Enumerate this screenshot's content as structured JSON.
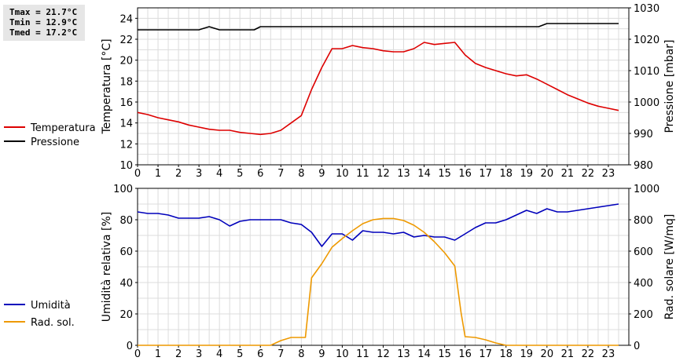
{
  "stats": {
    "tmax": "Tmax = 21.7°C",
    "tmin": "Tmin = 12.9°C",
    "tmed": "Tmed = 17.2°C"
  },
  "chart_data": [
    {
      "type": "line",
      "xlabel": "",
      "ylabel": "Temperatura [°C]",
      "y2label": "Pressione [mbar]",
      "xlim": [
        0,
        24
      ],
      "ylim": [
        10,
        25
      ],
      "y2lim": [
        980,
        1030
      ],
      "x_ticks": [
        0,
        1,
        2,
        3,
        4,
        5,
        6,
        7,
        8,
        9,
        10,
        11,
        12,
        13,
        14,
        15,
        16,
        17,
        18,
        19,
        20,
        21,
        22,
        23
      ],
      "y_ticks": [
        10,
        12,
        14,
        16,
        18,
        20,
        22,
        24
      ],
      "y2_ticks": [
        980,
        990,
        1000,
        1010,
        1020,
        1030
      ],
      "grid": true,
      "legend": "left",
      "series": [
        {
          "name": "Temperatura",
          "axis": "left",
          "color": "#dd0000",
          "x": [
            0,
            0.5,
            1,
            1.5,
            2,
            2.5,
            3,
            3.5,
            4,
            4.5,
            5,
            5.5,
            6,
            6.5,
            7,
            7.5,
            8,
            8.5,
            9,
            9.5,
            10,
            10.5,
            11,
            11.5,
            12,
            12.5,
            13,
            13.5,
            14,
            14.5,
            15,
            15.5,
            16,
            16.5,
            17,
            17.5,
            18,
            18.5,
            19,
            19.5,
            20,
            20.5,
            21,
            21.5,
            22,
            22.5,
            23,
            23.5
          ],
          "values": [
            15.0,
            14.8,
            14.5,
            14.3,
            14.1,
            13.8,
            13.6,
            13.4,
            13.3,
            13.3,
            13.1,
            13.0,
            12.9,
            13.0,
            13.3,
            14.0,
            14.7,
            17.2,
            19.3,
            21.1,
            21.1,
            21.4,
            21.2,
            21.1,
            20.9,
            20.8,
            20.8,
            21.1,
            21.7,
            21.5,
            21.6,
            21.7,
            20.5,
            19.7,
            19.3,
            19.0,
            18.7,
            18.5,
            18.6,
            18.2,
            17.7,
            17.2,
            16.7,
            16.3,
            15.9,
            15.6,
            15.4,
            15.2
          ]
        },
        {
          "name": "Pressione",
          "axis": "right",
          "color": "#000000",
          "x": [
            0,
            1,
            2,
            3,
            3.5,
            4,
            5,
            5.7,
            6,
            7,
            8,
            9,
            10,
            11,
            12,
            13,
            14,
            15,
            16,
            17,
            18,
            19,
            19.6,
            20,
            21,
            22,
            23,
            23.5
          ],
          "values": [
            1023,
            1023,
            1023,
            1023,
            1024,
            1023,
            1023,
            1023,
            1024,
            1024,
            1024,
            1024,
            1024,
            1024,
            1024,
            1024,
            1024,
            1024,
            1024,
            1024,
            1024,
            1024,
            1024,
            1025,
            1025,
            1025,
            1025,
            1025
          ]
        }
      ]
    },
    {
      "type": "line",
      "xlabel": "",
      "ylabel": "Umidità relativa [%]",
      "y2label": "Rad. solare [W/mq]",
      "xlim": [
        0,
        24
      ],
      "ylim": [
        0,
        100
      ],
      "y2lim": [
        0,
        1000
      ],
      "x_ticks": [
        0,
        1,
        2,
        3,
        4,
        5,
        6,
        7,
        8,
        9,
        10,
        11,
        12,
        13,
        14,
        15,
        16,
        17,
        18,
        19,
        20,
        21,
        22,
        23
      ],
      "y_ticks": [
        0,
        20,
        40,
        60,
        80,
        100
      ],
      "y2_ticks": [
        0,
        200,
        400,
        600,
        800,
        1000
      ],
      "grid": true,
      "legend": "left",
      "series": [
        {
          "name": "Umidità",
          "axis": "left",
          "color": "#0000bb",
          "x": [
            0,
            0.5,
            1,
            1.5,
            2,
            2.5,
            3,
            3.5,
            4,
            4.5,
            5,
            5.5,
            6,
            6.5,
            7,
            7.5,
            8,
            8.5,
            9,
            9.5,
            10,
            10.5,
            11,
            11.5,
            12,
            12.5,
            13,
            13.5,
            14,
            14.5,
            15,
            15.5,
            16,
            16.5,
            17,
            17.5,
            18,
            18.5,
            19,
            19.5,
            20,
            20.5,
            21,
            21.5,
            22,
            22.5,
            23,
            23.5
          ],
          "values": [
            85,
            84,
            84,
            83,
            81,
            81,
            81,
            82,
            80,
            76,
            79,
            80,
            80,
            80,
            80,
            78,
            77,
            72,
            63,
            71,
            71,
            67,
            73,
            72,
            72,
            71,
            72,
            69,
            70,
            69,
            69,
            67,
            71,
            75,
            78,
            78,
            80,
            83,
            86,
            84,
            87,
            85,
            85,
            86,
            87,
            88,
            89,
            90
          ]
        },
        {
          "name": "Rad. sol.",
          "axis": "right",
          "color": "#ee9900",
          "x": [
            0,
            1,
            2,
            3,
            4,
            5,
            6,
            6.5,
            7,
            7.5,
            8,
            8.2,
            8.5,
            9,
            9.5,
            10,
            10.5,
            11,
            11.5,
            12,
            12.5,
            13,
            13.5,
            14,
            14.5,
            15,
            15.5,
            15.8,
            16,
            16.5,
            17,
            17.5,
            18,
            19,
            20,
            21,
            22,
            23,
            23.5
          ],
          "values": [
            0,
            0,
            0,
            0,
            0,
            0,
            0,
            0,
            30,
            50,
            50,
            50,
            430,
            520,
            625,
            680,
            730,
            775,
            800,
            808,
            808,
            795,
            765,
            720,
            660,
            590,
            505,
            210,
            55,
            50,
            35,
            15,
            0,
            0,
            0,
            0,
            0,
            0,
            0
          ]
        }
      ]
    }
  ]
}
